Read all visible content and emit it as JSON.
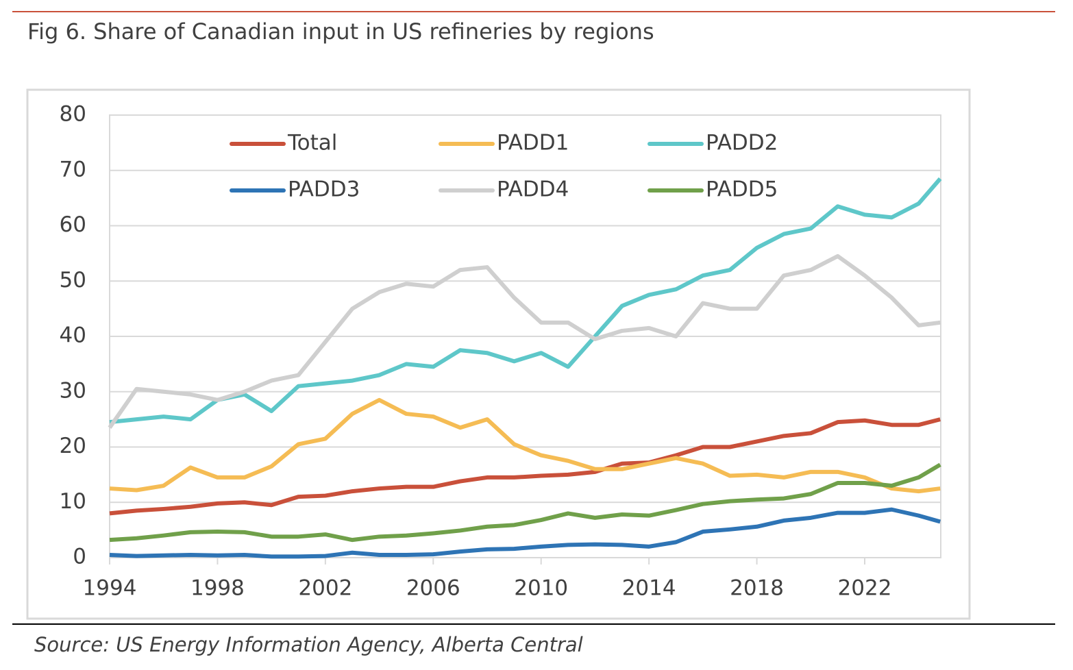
{
  "chart_data": {
    "type": "line",
    "title": "Fig 6. Share of Canadian input in US refineries by regions",
    "source": "Source: US Energy Information Agency, Alberta Central",
    "x": [
      1994,
      1995,
      1996,
      1997,
      1998,
      1999,
      2000,
      2001,
      2002,
      2003,
      2004,
      2005,
      2006,
      2007,
      2008,
      2009,
      2010,
      2011,
      2012,
      2013,
      2014,
      2015,
      2016,
      2017,
      2018,
      2019,
      2020,
      2021,
      2022,
      2023,
      2024,
      2024.8
    ],
    "series": [
      {
        "name": "Total",
        "color": "#c9503a",
        "values": [
          8,
          8.5,
          8.8,
          9.2,
          9.8,
          10,
          9.5,
          11,
          11.2,
          12,
          12.5,
          12.8,
          12.8,
          13.8,
          14.5,
          14.5,
          14.8,
          15,
          15.5,
          17,
          17.2,
          18.5,
          20,
          20,
          21,
          22,
          22.5,
          24.5,
          24.8,
          24,
          24,
          25
        ]
      },
      {
        "name": "PADD1",
        "color": "#f5bc54",
        "values": [
          12.5,
          12.2,
          13,
          16.3,
          14.5,
          14.5,
          16.5,
          20.5,
          21.5,
          26,
          28.5,
          26,
          25.5,
          23.5,
          25,
          20.5,
          18.5,
          17.5,
          16,
          16,
          17,
          18,
          17,
          14.8,
          15,
          14.5,
          15.5,
          15.5,
          14.5,
          12.5,
          12,
          12.5
        ]
      },
      {
        "name": "PADD2",
        "color": "#5ec7c9",
        "values": [
          24.5,
          25,
          25.5,
          25,
          28.5,
          29.5,
          26.5,
          31,
          31.5,
          32,
          33,
          35,
          34.5,
          37.5,
          37,
          35.5,
          37,
          34.5,
          40,
          45.5,
          47.5,
          48.5,
          51,
          52,
          56,
          58.5,
          59.5,
          63.5,
          62,
          61.5,
          64,
          68.5
        ]
      },
      {
        "name": "PADD3",
        "color": "#2e74b5",
        "values": [
          0.5,
          0.3,
          0.4,
          0.5,
          0.4,
          0.5,
          0.2,
          0.2,
          0.3,
          0.9,
          0.5,
          0.5,
          0.6,
          1.1,
          1.5,
          1.6,
          2,
          2.3,
          2.4,
          2.3,
          2,
          2.8,
          4.7,
          5.1,
          5.6,
          6.7,
          7.2,
          8.1,
          8.1,
          8.7,
          7.6,
          6.5
        ]
      },
      {
        "name": "PADD4",
        "color": "#cfcfcf",
        "values": [
          23.5,
          30.5,
          30,
          29.5,
          28.5,
          30,
          32,
          33,
          39,
          45,
          48,
          49.5,
          49,
          52,
          52.5,
          47,
          42.5,
          42.5,
          39.5,
          41,
          41.5,
          40,
          46,
          45,
          45,
          51,
          52,
          54.5,
          51,
          47,
          42,
          42.5
        ]
      },
      {
        "name": "PADD5",
        "color": "#70a04a",
        "values": [
          3.2,
          3.5,
          4,
          4.6,
          4.7,
          4.6,
          3.8,
          3.8,
          4.2,
          3.2,
          3.8,
          4,
          4.4,
          4.9,
          5.6,
          5.9,
          6.8,
          8,
          7.2,
          7.8,
          7.6,
          8.6,
          9.7,
          10.2,
          10.5,
          10.7,
          11.5,
          13.5,
          13.5,
          13,
          14.5,
          16.8
        ]
      }
    ],
    "xlim": [
      1994,
      2024.82
    ],
    "xticks": [
      1994,
      1998,
      2002,
      2006,
      2010,
      2014,
      2018,
      2022
    ],
    "ylim": [
      0,
      80
    ],
    "yticks": [
      0,
      10,
      20,
      30,
      40,
      50,
      60,
      70,
      80
    ],
    "grid": true
  }
}
